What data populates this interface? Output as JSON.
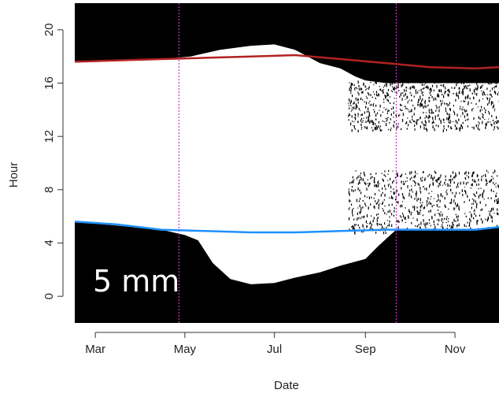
{
  "chart_data": {
    "type": "area",
    "title": "",
    "xlabel": "Date",
    "ylabel": "Hour",
    "xlim": [
      "2014-02-15",
      "2014-12-01"
    ],
    "ylim": [
      -2,
      22
    ],
    "x_ticks": [
      {
        "date": "2014-03-01",
        "label": "Mar"
      },
      {
        "date": "2014-05-01",
        "label": "May"
      },
      {
        "date": "2014-07-01",
        "label": "Jul"
      },
      {
        "date": "2014-09-01",
        "label": "Sep"
      },
      {
        "date": "2014-11-01",
        "label": "Nov"
      }
    ],
    "y_ticks": [
      0,
      4,
      8,
      12,
      16,
      20
    ],
    "y_tick_labels": [
      "0",
      "4",
      "8",
      "12",
      "16",
      "20"
    ],
    "annotation": "5 mm",
    "vertical_markers": [
      {
        "date": "2014-04-27",
        "color": "#cc33cc"
      },
      {
        "date": "2014-09-22",
        "color": "#cc33cc"
      }
    ],
    "series": [
      {
        "kind": "line",
        "color": "#b22222",
        "x": [
          "2014-02-15",
          "2014-03-15",
          "2014-04-15",
          "2014-05-15",
          "2014-06-15",
          "2014-07-15",
          "2014-08-15",
          "2014-09-15",
          "2014-10-15",
          "2014-11-15",
          "2014-12-01"
        ],
        "y": [
          17.6,
          17.7,
          17.8,
          17.9,
          18.0,
          18.1,
          17.8,
          17.5,
          17.2,
          17.1,
          17.2
        ]
      },
      {
        "kind": "line",
        "color": "#1e90ff",
        "x": [
          "2014-02-15",
          "2014-03-15",
          "2014-04-15",
          "2014-05-15",
          "2014-06-15",
          "2014-07-15",
          "2014-08-15",
          "2014-09-15",
          "2014-10-15",
          "2014-11-15",
          "2014-12-01"
        ],
        "y": [
          5.6,
          5.4,
          5.0,
          4.9,
          4.8,
          4.8,
          4.9,
          5.0,
          5.0,
          5.0,
          5.2
        ]
      },
      {
        "kind": "white-area-top",
        "x": [
          "2014-02-15",
          "2014-04-15",
          "2014-05-05",
          "2014-05-25",
          "2014-06-15",
          "2014-07-01",
          "2014-07-15",
          "2014-08-01",
          "2014-08-15",
          "2014-08-25",
          "2014-09-01",
          "2014-09-15",
          "2014-10-01",
          "2014-11-01",
          "2014-12-01"
        ],
        "y": [
          17.6,
          17.8,
          18.0,
          18.5,
          18.8,
          18.9,
          18.5,
          17.5,
          17.1,
          16.5,
          16.2,
          16.0,
          16.0,
          16.0,
          16.0
        ]
      },
      {
        "kind": "white-area-bottom",
        "x": [
          "2014-02-15",
          "2014-04-15",
          "2014-05-01",
          "2014-05-10",
          "2014-05-20",
          "2014-06-01",
          "2014-06-15",
          "2014-07-01",
          "2014-07-15",
          "2014-08-01",
          "2014-08-15",
          "2014-09-01",
          "2014-09-10",
          "2014-09-22",
          "2014-10-15",
          "2014-11-15",
          "2014-12-01"
        ],
        "y": [
          5.6,
          5.0,
          4.6,
          4.2,
          2.5,
          1.3,
          0.9,
          1.0,
          1.4,
          1.8,
          2.3,
          2.8,
          3.8,
          5.0,
          5.0,
          5.0,
          5.2
        ]
      }
    ]
  }
}
